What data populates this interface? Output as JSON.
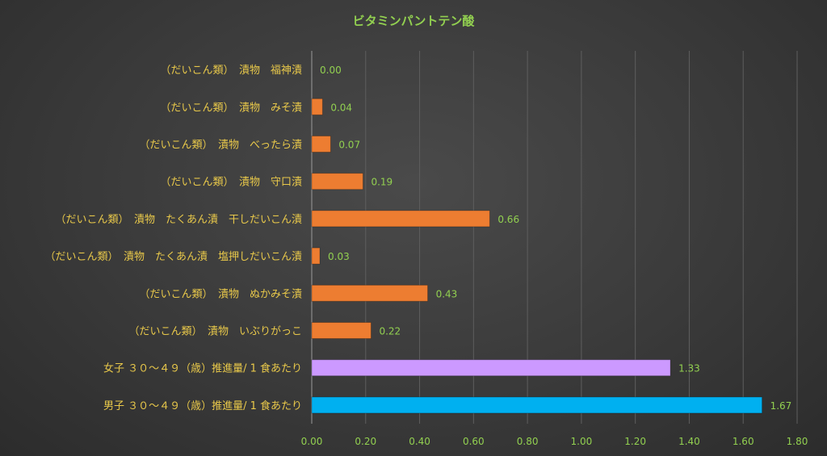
{
  "chart_data": {
    "type": "bar",
    "orientation": "horizontal",
    "title": "ビタミンパントテン酸",
    "xlim": [
      0,
      1.8
    ],
    "x_ticks": [
      "0.00",
      "0.20",
      "0.40",
      "0.60",
      "0.80",
      "1.00",
      "1.20",
      "1.40",
      "1.60",
      "1.80"
    ],
    "grid": true,
    "categories": [
      "（だいこん類）　漬物　福神漬",
      "（だいこん類）　漬物　みそ漬",
      "（だいこん類）　漬物　べったら漬",
      "（だいこん類）　漬物　守口漬",
      "（だいこん類）　漬物　たくあん漬　干しだいこん漬",
      "（だいこん類）　漬物　たくあん漬　塩押しだいこん漬",
      "（だいこん類）　漬物　ぬかみそ漬",
      "（だいこん類）　漬物　いぶりがっこ",
      "女子 ３０～４９（歳）推進量/ 1 食あたり",
      "男子 ３０～４９（歳）推進量/ 1 食あたり"
    ],
    "values": [
      0.0,
      0.04,
      0.07,
      0.19,
      0.66,
      0.03,
      0.43,
      0.22,
      1.33,
      1.67
    ],
    "value_labels": [
      "0.00",
      "0.04",
      "0.07",
      "0.19",
      "0.66",
      "0.03",
      "0.43",
      "0.22",
      "1.33",
      "1.67"
    ],
    "colors": [
      "#ed7d31",
      "#ed7d31",
      "#ed7d31",
      "#ed7d31",
      "#ed7d31",
      "#ed7d31",
      "#ed7d31",
      "#ed7d31",
      "#cc99ff",
      "#00b0f0"
    ]
  }
}
